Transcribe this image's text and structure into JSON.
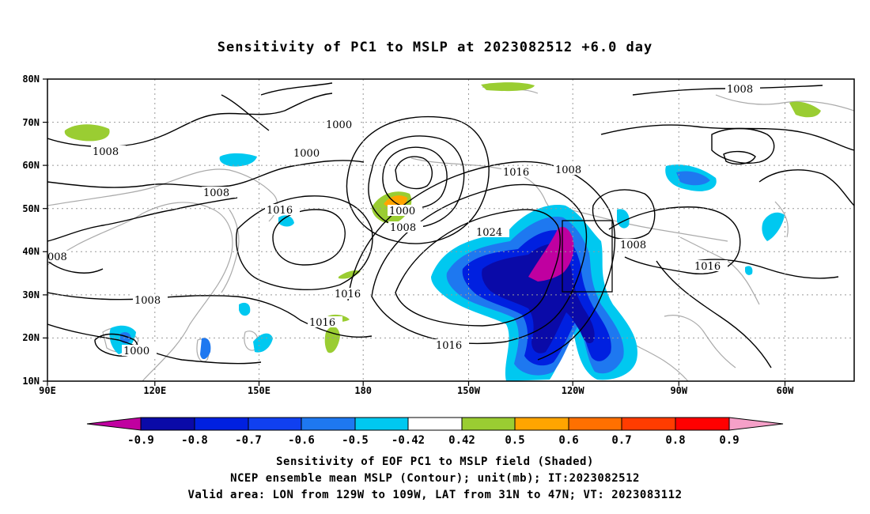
{
  "title": "Sensitivity of PC1 to MSLP at 2023082512 +6.0 day",
  "map": {
    "lat_labels": [
      "80N",
      "70N",
      "60N",
      "50N",
      "40N",
      "30N",
      "20N",
      "10N"
    ],
    "lon_labels": [
      "90E",
      "120E",
      "150E",
      "180",
      "150W",
      "120W",
      "90W",
      "60W"
    ],
    "grid": "dotted",
    "coastline_color": "#aaaaaa",
    "contour_labels": [
      "1000",
      "1000",
      "1000",
      "1008",
      "1008",
      "1008",
      "1008",
      "1008",
      "1008",
      "1008",
      "1016",
      "1016",
      "1016",
      "1016",
      "1016",
      "1016",
      "1016",
      "1024",
      "1000",
      "008"
    ],
    "target_box": {
      "lon_from": "129W",
      "lon_to": "109W",
      "lat_from": "31N",
      "lat_to": "47N"
    }
  },
  "colorbar": {
    "labels": [
      "-0.9",
      "-0.8",
      "-0.7",
      "-0.6",
      "-0.5",
      "-0.42",
      "0.42",
      "0.5",
      "0.6",
      "0.7",
      "0.8",
      "0.9"
    ],
    "colors": [
      "#c000a0",
      "#0a0aa8",
      "#0020e0",
      "#1040f0",
      "#1e78f0",
      "#00c8f0",
      "#ffffff",
      "#9acd32",
      "#ffa500",
      "#ff7000",
      "#ff3c00",
      "#ff0000",
      "#f5a0c8"
    ]
  },
  "footer": {
    "line1": "Sensitivity of EOF PC1 to MSLP field (Shaded)",
    "line2": "NCEP ensemble mean MSLP (Contour); unit(mb); IT:2023082512",
    "line3": "Valid area: LON from 129W to 109W, LAT from 31N to 47N; VT: 2023083112"
  }
}
